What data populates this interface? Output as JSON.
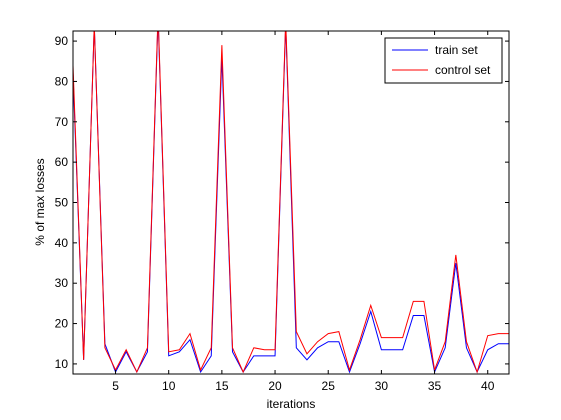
{
  "chart_data": {
    "type": "line",
    "title": "",
    "xlabel": "iterations",
    "ylabel": "% of max losses",
    "xlim": [
      1,
      42
    ],
    "ylim": [
      7.5,
      92.5
    ],
    "grid": false,
    "legend_position": "top-right",
    "x_ticks": [
      5,
      10,
      15,
      20,
      25,
      30,
      35,
      40
    ],
    "y_ticks": [
      10,
      20,
      30,
      40,
      50,
      60,
      70,
      80,
      90
    ],
    "x": [
      1,
      2,
      3,
      4,
      5,
      6,
      7,
      8,
      9,
      10,
      11,
      12,
      13,
      14,
      15,
      16,
      17,
      18,
      19,
      20,
      21,
      22,
      23,
      24,
      25,
      26,
      27,
      28,
      29,
      30,
      31,
      32,
      33,
      34,
      35,
      36,
      37,
      38,
      39,
      40,
      41,
      42
    ],
    "series": [
      {
        "name": "train set",
        "color": "#0000ff",
        "values": [
          82,
          11,
          94,
          15,
          8,
          13,
          8,
          13,
          96,
          12,
          13,
          16,
          8,
          12,
          86,
          13,
          8,
          12,
          12,
          12,
          94,
          14,
          11,
          14,
          15.5,
          15.5,
          8,
          15,
          23,
          13.5,
          13.5,
          13.5,
          22,
          22,
          8,
          14,
          35,
          14,
          8,
          13.5,
          15,
          15
        ]
      },
      {
        "name": "control set",
        "color": "#ff0000",
        "values": [
          84,
          11,
          94,
          14,
          8.5,
          13.5,
          8,
          14,
          97,
          13,
          13.5,
          17.5,
          8.5,
          14,
          89,
          14,
          8,
          14,
          13.5,
          13.5,
          95,
          18,
          12.5,
          15.5,
          17.5,
          18,
          8.5,
          16,
          24.5,
          16.5,
          16.5,
          16.5,
          25.5,
          25.5,
          8.5,
          15.5,
          37,
          15.5,
          8,
          17,
          17.5,
          17.5
        ]
      }
    ]
  }
}
